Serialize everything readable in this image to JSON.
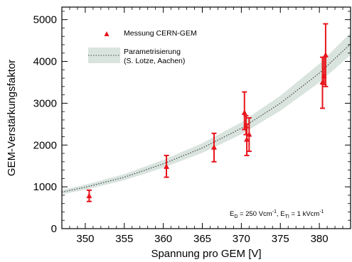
{
  "chart_data": {
    "type": "scatter",
    "xlabel": "Spannung pro GEM [V]",
    "ylabel": "GEM-Verstärkungsfaktor",
    "xlim": [
      347,
      384
    ],
    "ylim": [
      0,
      5300
    ],
    "xticks": [
      350,
      355,
      360,
      365,
      370,
      375,
      380
    ],
    "yticks": [
      0,
      1000,
      2000,
      3000,
      4000,
      5000
    ],
    "grid": false,
    "legend_position": "top-left",
    "series": [
      {
        "name": "Messung CERN-GEM",
        "marker": "triangle",
        "color": "#e8151b",
        "points": [
          {
            "x": 350.5,
            "y": 780,
            "err_lo": 650,
            "err_hi": 920
          },
          {
            "x": 360.4,
            "y": 1480,
            "err_lo": 1230,
            "err_hi": 1750
          },
          {
            "x": 366.5,
            "y": 1940,
            "err_lo": 1600,
            "err_hi": 2280
          },
          {
            "x": 370.4,
            "y": 2770,
            "err_lo": 2370,
            "err_hi": 3270
          },
          {
            "x": 370.6,
            "y": 2450,
            "err_lo": 2250,
            "err_hi": 2700
          },
          {
            "x": 370.7,
            "y": 2130,
            "err_lo": 1750,
            "err_hi": 2500
          },
          {
            "x": 371.0,
            "y": 2250,
            "err_lo": 1850,
            "err_hi": 2650
          },
          {
            "x": 380.4,
            "y": 3500,
            "err_lo": 2880,
            "err_hi": 4100
          },
          {
            "x": 380.6,
            "y": 3650,
            "err_lo": 3450,
            "err_hi": 4100
          },
          {
            "x": 380.8,
            "y": 4150,
            "err_lo": 3400,
            "err_hi": 4900
          }
        ]
      },
      {
        "name": "Parametrisierung",
        "name_line2": "(S. Lotze, Aachen)",
        "style": "dotted line with band",
        "line_color": "#444444",
        "band_color": "#d9e4df",
        "x": [
          347,
          350,
          355,
          360,
          365,
          370,
          375,
          380,
          384
        ],
        "y": [
          875,
          990,
          1230,
          1550,
          1930,
          2400,
          3000,
          3720,
          4420
        ],
        "band_fraction": 0.06
      }
    ],
    "annotation": {
      "prefix": "E",
      "sub1": "D",
      "mid": " = 250 Vcm",
      "sup1": "-1",
      "sep": ", E",
      "sub2": "TI",
      "mid2": " = 1 kVcm",
      "sup2": "-1"
    }
  }
}
